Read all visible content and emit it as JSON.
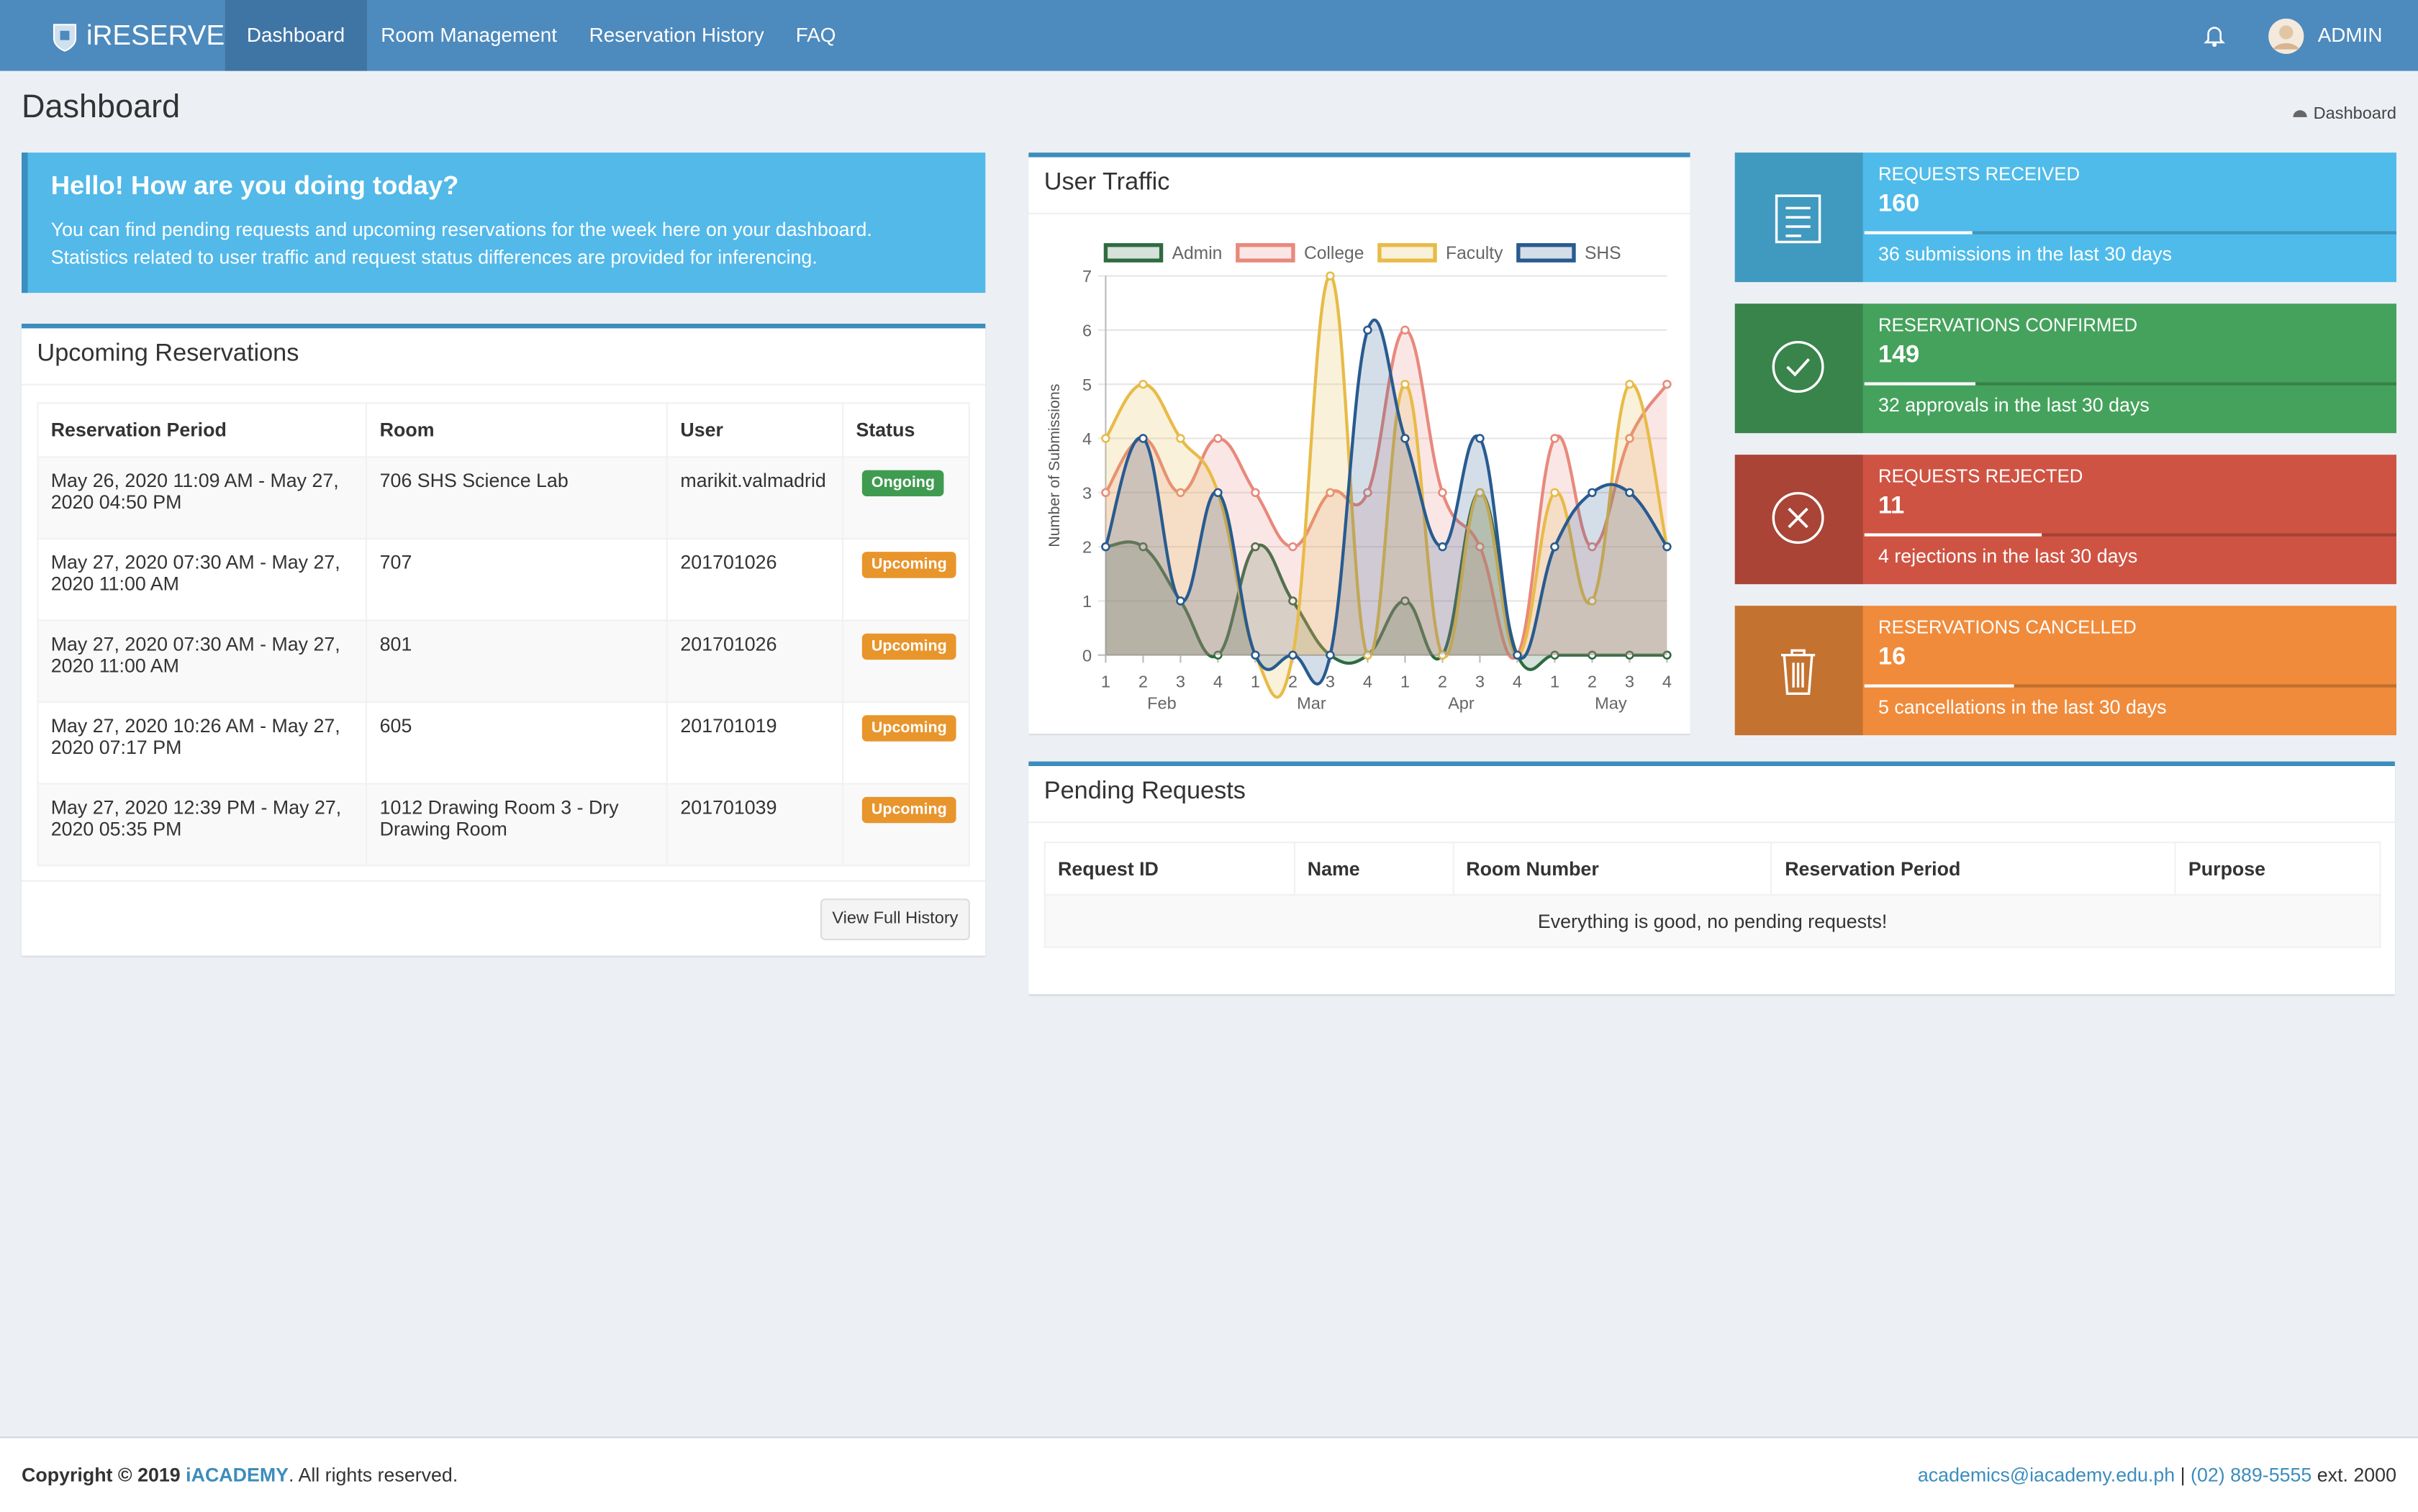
{
  "navbar": {
    "brand": "iRESERVE",
    "items": [
      "Dashboard",
      "Room Management",
      "Reservation History",
      "FAQ"
    ],
    "user": "ADMIN"
  },
  "header": {
    "title": "Dashboard",
    "breadcrumb": "Dashboard"
  },
  "callout": {
    "title": "Hello! How are you doing today?",
    "text": [
      "You can find pending requests and upcoming reservations for the week here on your dashboard.",
      "Statistics related to user traffic and request status differences are provided for inferencing."
    ]
  },
  "upcoming": {
    "title": "Upcoming Reservations",
    "columns": [
      "Reservation Period",
      "Room",
      "User",
      "Status"
    ],
    "rows": [
      {
        "period": "May 26, 2020 11:09 AM - May 27, 2020 04:50 PM",
        "room": "706 SHS Science Lab",
        "user": "marikit.valmadrid",
        "status": "Ongoing",
        "status_color": "#3f9b50"
      },
      {
        "period": "May 27, 2020 07:30 AM - May 27, 2020 11:00 AM",
        "room": "707",
        "user": "201701026",
        "status": "Upcoming",
        "status_color": "#e8952c"
      },
      {
        "period": "May 27, 2020 07:30 AM - May 27, 2020 11:00 AM",
        "room": "801",
        "user": "201701026",
        "status": "Upcoming",
        "status_color": "#e8952c"
      },
      {
        "period": "May 27, 2020 10:26 AM - May 27, 2020 07:17 PM",
        "room": "605",
        "user": "201701019",
        "status": "Upcoming",
        "status_color": "#e8952c"
      },
      {
        "period": "May 27, 2020 12:39 PM - May 27, 2020 05:35 PM",
        "room": "1012 Drawing Room 3 - Dry Drawing Room",
        "user": "201701039",
        "status": "Upcoming",
        "status_color": "#e8952c"
      }
    ],
    "button": "View Full History"
  },
  "chart_data": {
    "type": "line",
    "title": "User Traffic",
    "y_label": "Number of Submissions",
    "categories": [
      "1",
      "2",
      "3",
      "4",
      "1",
      "2",
      "3",
      "4",
      "1",
      "2",
      "3",
      "4",
      "1",
      "2",
      "3",
      "4"
    ],
    "month_labels": [
      "Feb",
      "Mar",
      "Apr",
      "May"
    ],
    "ylim": [
      0,
      7
    ],
    "yticks": [
      0,
      1,
      2,
      3,
      4,
      5,
      6,
      7
    ],
    "grid": true,
    "series": [
      {
        "name": "Admin",
        "color": "#2f6b41",
        "values": [
          2,
          2,
          1,
          0,
          2,
          1,
          0,
          0,
          1,
          0,
          3,
          0,
          0,
          0,
          0,
          0
        ]
      },
      {
        "name": "College",
        "color": "#e8897c",
        "values": [
          3,
          4,
          3,
          4,
          3,
          2,
          3,
          3,
          6,
          3,
          2,
          0,
          4,
          2,
          4,
          5
        ]
      },
      {
        "name": "Faculty",
        "color": "#e8bb48",
        "values": [
          4,
          5,
          4,
          3,
          0,
          0,
          7,
          0,
          5,
          0,
          3,
          0,
          3,
          1,
          5,
          2
        ]
      },
      {
        "name": "SHS",
        "color": "#285b90",
        "values": [
          2,
          4,
          1,
          3,
          0,
          0,
          0,
          6,
          4,
          2,
          4,
          0,
          2,
          3,
          3,
          2
        ]
      }
    ]
  },
  "stats": [
    {
      "label": "REQUESTS RECEIVED",
      "value": 160,
      "description": "36 submissions in the last 30 days"
    },
    {
      "label": "RESERVATIONS CONFIRMED",
      "value": 149,
      "description": "32 approvals in the last 30 days"
    },
    {
      "label": "REQUESTS REJECTED",
      "value": 11,
      "description": "4 rejections in the last 30 days"
    },
    {
      "label": "RESERVATIONS CANCELLED",
      "value": 16,
      "description": "5 cancellations in the last 30 days"
    }
  ],
  "pending": {
    "title": "Pending Requests",
    "columns": [
      "Request ID",
      "Name",
      "Room Number",
      "Reservation Period",
      "Purpose"
    ],
    "message": "Everything is good, no pending requests!"
  },
  "footer": {
    "copyright": "Copyright © 2019",
    "org": "iACADEMY",
    "rights": ". All rights reserved.",
    "email": "academics@iacademy.edu.ph",
    "separator": "|",
    "phone": "(02) 889-5555",
    "ext": "ext. 2000"
  }
}
